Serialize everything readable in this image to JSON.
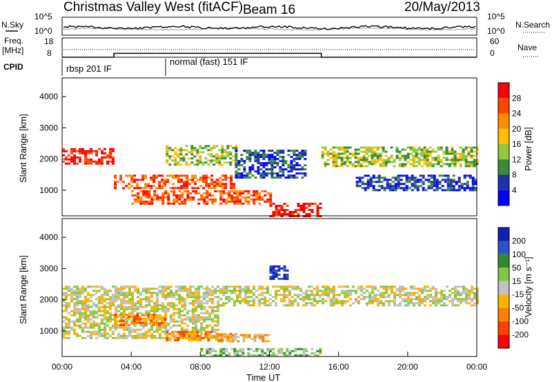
{
  "header": {
    "title": "Christmas Valley West (fitACF)",
    "beam": "Beam 16",
    "date": "20/May/2013"
  },
  "sky_panel": {
    "left_label": "N.Sky",
    "right_label": "N.Search",
    "left_ticks": [
      "10^5",
      "10^0"
    ],
    "right_ticks": [
      "10^5",
      "10^0"
    ]
  },
  "freq_panel": {
    "left_label_1": "Freq.",
    "left_label_2": "[MHz]",
    "left_ticks": [
      "18",
      "8"
    ],
    "right_ticks": [
      "60",
      "0"
    ],
    "right_label": "Nave"
  },
  "cpid_panel": {
    "label": "CPID",
    "modes": [
      {
        "name": "rbsp 201 IF",
        "start_hour": 0
      },
      {
        "name": "normal (fast) 151 IF",
        "start_hour": 6
      }
    ]
  },
  "power_colorbar": {
    "label": "Power [dB]",
    "ticks": [
      "28",
      "24",
      "20",
      "16",
      "12",
      "8",
      "4"
    ],
    "colors": [
      "#ff0000",
      "#ff4500",
      "#ff8c00",
      "#ffc000",
      "#90c840",
      "#3a8a3a",
      "#2030a8",
      "#0000ff"
    ]
  },
  "velocity_colorbar": {
    "label": "Velocity [m s⁻¹]",
    "ticks": [
      "200",
      "100",
      "50",
      "15",
      "-15",
      "-50",
      "-100",
      "-200"
    ],
    "colors": [
      "#1020b0",
      "#3050c8",
      "#2f8a2f",
      "#80c840",
      "#c0c0c0",
      "#ffb000",
      "#ff8000",
      "#ff4000",
      "#ff0000"
    ]
  },
  "chart_data": {
    "type": "heatmap",
    "xlabel": "Time UT",
    "x_ticks": [
      "00:00",
      "04:00",
      "08:00",
      "12:00",
      "16:00",
      "20:00",
      "00:00"
    ],
    "xlim_hours": [
      0,
      24
    ],
    "ylabel": "Slant Range [km]",
    "y_ticks": [
      1000,
      2000,
      3000,
      4000
    ],
    "ylim_km": [
      180,
      4600
    ],
    "freq_mhz_steps": [
      {
        "from_hour": 0,
        "to_hour": 3,
        "value": 8
      },
      {
        "from_hour": 3,
        "to_hour": 15,
        "value": 10
      },
      {
        "from_hour": 15,
        "to_hour": 24,
        "value": 8
      }
    ],
    "power_bands": [
      {
        "t": [
          0,
          3
        ],
        "r": [
          1850,
          2350
        ],
        "level": 0
      },
      {
        "t": [
          3,
          10
        ],
        "r": [
          1050,
          1500
        ],
        "level": 1
      },
      {
        "t": [
          4,
          12
        ],
        "r": [
          600,
          1000
        ],
        "level": 1
      },
      {
        "t": [
          12,
          15
        ],
        "r": [
          150,
          600
        ],
        "level": 0
      },
      {
        "t": [
          6,
          10
        ],
        "r": [
          1800,
          2450
        ],
        "level": 4
      },
      {
        "t": [
          15,
          24
        ],
        "r": [
          1800,
          2400
        ],
        "level": 4
      },
      {
        "t": [
          10,
          14
        ],
        "r": [
          1400,
          2300
        ],
        "level": 6
      },
      {
        "t": [
          17,
          24
        ],
        "r": [
          1000,
          1500
        ],
        "level": 6
      }
    ],
    "velocity_bands": [
      {
        "t": [
          0,
          24
        ],
        "r": [
          1800,
          2450
        ],
        "level": 4
      },
      {
        "t": [
          0,
          9
        ],
        "r": [
          800,
          1800
        ],
        "level": 4
      },
      {
        "t": [
          6,
          10
        ],
        "r": [
          700,
          1000
        ],
        "level": 6
      },
      {
        "t": [
          3,
          6
        ],
        "r": [
          1200,
          1550
        ],
        "level": 6
      },
      {
        "t": [
          9,
          12
        ],
        "r": [
          700,
          900
        ],
        "level": 5
      },
      {
        "t": [
          12,
          13
        ],
        "r": [
          2700,
          3100
        ],
        "level": 0
      },
      {
        "t": [
          8,
          15
        ],
        "r": [
          200,
          450
        ],
        "level": 3
      }
    ]
  }
}
